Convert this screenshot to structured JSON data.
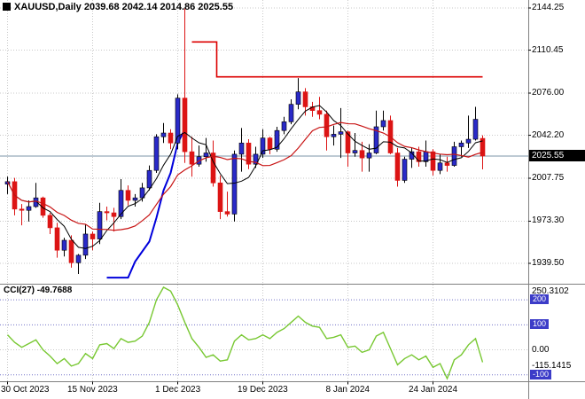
{
  "header": {
    "symbol_ohlc": "XAUUSD,Daily 2039.68 2042.14 2014.86 2025.55"
  },
  "indicator": {
    "label": "CCI(27) -49.7688"
  },
  "colors": {
    "background": "#ffffff",
    "bull_fill": "#2a2ac8",
    "bull_outline": "#000000",
    "bear": "#dc1414",
    "ma_fast": "#000000",
    "ma_slow": "#c81414",
    "trail_support": "#0000dc",
    "trail_resistance": "#dc0000",
    "cci_line": "#78c832",
    "grid": "#c8c8c8",
    "level_line": "#7070c8",
    "badge": "#3c3cc8",
    "current_price_line": "#7e96aa",
    "badge_current_bg": "#000000",
    "badge_current_fg": "#ffffff",
    "frame": "#808080",
    "axis_text": "#000000"
  },
  "price_axis": {
    "labels": [
      2144.25,
      2110.45,
      2076.0,
      2042.2,
      2007.75,
      1973.3,
      1939.5
    ],
    "current": 2025.55
  },
  "time_axis": {
    "labels": [
      "30 Oct 2023",
      "15 Nov 2023",
      "1 Dec 2023",
      "19 Dec 2023",
      "8 Jan 2024",
      "24 Jan 2024"
    ],
    "tick_indices": [
      0,
      12,
      24,
      36,
      48,
      60
    ]
  },
  "cci_axis": {
    "max_label": "250.3102",
    "level_badges": [
      200,
      100
    ],
    "zero_label": "0.00",
    "min_label": "-115.1415",
    "bottom_badge": -100
  },
  "chart_data": {
    "type": "candlestick",
    "title": "XAUUSD,Daily",
    "symbol": "XAUUSD",
    "timeframe": "Daily",
    "last_bar": {
      "open": 2039.68,
      "high": 2042.14,
      "low": 2014.86,
      "close": 2025.55
    },
    "ohlc": [
      [
        2003,
        2009,
        1995,
        2005
      ],
      [
        2005,
        2008,
        1978,
        1983
      ],
      [
        1983,
        1987,
        1970,
        1982
      ],
      [
        1982,
        1990,
        1973,
        1985
      ],
      [
        1985,
        2004,
        1984,
        1992
      ],
      [
        1992,
        1993,
        1976,
        1978
      ],
      [
        1978,
        1980,
        1963,
        1968
      ],
      [
        1968,
        1972,
        1944,
        1950
      ],
      [
        1950,
        1960,
        1945,
        1958
      ],
      [
        1958,
        1962,
        1936,
        1940
      ],
      [
        1940,
        1947,
        1931,
        1946
      ],
      [
        1946,
        1971,
        1943,
        1963
      ],
      [
        1963,
        1965,
        1950,
        1959
      ],
      [
        1959,
        1988,
        1955,
        1981
      ],
      [
        1981,
        1985,
        1974,
        1980
      ],
      [
        1980,
        1984,
        1965,
        1977
      ],
      [
        1977,
        2007,
        1975,
        1998
      ],
      [
        1998,
        2002,
        1986,
        1990
      ],
      [
        1990,
        1995,
        1985,
        1992
      ],
      [
        1992,
        2004,
        1989,
        2000
      ],
      [
        2000,
        2018,
        1998,
        2014
      ],
      [
        2014,
        2043,
        2012,
        2041
      ],
      [
        2041,
        2052,
        2036,
        2044
      ],
      [
        2044,
        2047,
        2031,
        2036
      ],
      [
        2036,
        2075,
        2031,
        2072
      ],
      [
        2072,
        2144,
        2020,
        2029
      ],
      [
        2029,
        2041,
        2009,
        2019
      ],
      [
        2019,
        2034,
        2017,
        2025
      ],
      [
        2025,
        2040,
        2021,
        2028
      ],
      [
        2028,
        2038,
        2001,
        2004
      ],
      [
        2004,
        2010,
        1975,
        1981
      ],
      [
        1981,
        1997,
        1977,
        1979
      ],
      [
        1979,
        2030,
        1973,
        2027
      ],
      [
        2027,
        2048,
        2013,
        2036
      ],
      [
        2036,
        2039,
        2015,
        2019
      ],
      [
        2019,
        2033,
        2016,
        2027
      ],
      [
        2027,
        2047,
        2024,
        2040
      ],
      [
        2040,
        2041,
        2027,
        2031
      ],
      [
        2031,
        2049,
        2029,
        2046
      ],
      [
        2046,
        2057,
        2043,
        2053
      ],
      [
        2053,
        2071,
        2051,
        2067
      ],
      [
        2067,
        2088,
        2063,
        2077
      ],
      [
        2077,
        2080,
        2058,
        2065
      ],
      [
        2065,
        2069,
        2057,
        2062
      ],
      [
        2062,
        2073,
        2055,
        2059
      ],
      [
        2059,
        2062,
        2030,
        2041
      ],
      [
        2041,
        2050,
        2034,
        2043
      ],
      [
        2043,
        2064,
        2024,
        2045
      ],
      [
        2045,
        2046,
        2017,
        2028
      ],
      [
        2028,
        2044,
        2025,
        2030
      ],
      [
        2030,
        2037,
        2013,
        2024
      ],
      [
        2024,
        2035,
        2013,
        2028
      ],
      [
        2028,
        2062,
        2027,
        2049
      ],
      [
        2049,
        2062,
        2046,
        2054
      ],
      [
        2054,
        2058,
        2027,
        2028
      ],
      [
        2028,
        2032,
        2001,
        2006
      ],
      [
        2006,
        2025,
        2004,
        2023
      ],
      [
        2023,
        2032,
        2016,
        2029
      ],
      [
        2029,
        2033,
        2017,
        2021
      ],
      [
        2021,
        2038,
        2017,
        2029
      ],
      [
        2029,
        2031,
        2010,
        2014
      ],
      [
        2014,
        2027,
        2011,
        2020
      ],
      [
        2020,
        2025,
        2013,
        2018
      ],
      [
        2018,
        2037,
        2017,
        2033
      ],
      [
        2033,
        2038,
        2025,
        2036
      ],
      [
        2036,
        2058,
        2032,
        2039
      ],
      [
        2039,
        2065,
        2038,
        2055
      ],
      [
        2039.68,
        2042.14,
        2014.86,
        2025.55
      ]
    ],
    "overlays": [
      {
        "name": "ma-fast-line",
        "type": "sma",
        "period": 5,
        "color_key": "ma_fast",
        "width": 1
      },
      {
        "name": "ma-slow-line",
        "type": "sma",
        "period": 12,
        "color_key": "ma_slow",
        "width": 1.2
      }
    ],
    "trail_lines": [
      {
        "name": "trend-support-line",
        "color_key": "trail_support",
        "width": 2,
        "points": [
          [
            14,
            1928
          ],
          [
            17,
            1928
          ],
          [
            18,
            1941
          ],
          [
            19,
            1949
          ],
          [
            20,
            1957
          ],
          [
            21,
            1976
          ],
          [
            22,
            1998
          ],
          [
            23,
            2012
          ],
          [
            24,
            2036
          ],
          [
            25,
            2047
          ]
        ]
      },
      {
        "name": "trend-resistance-line",
        "color_key": "trail_resistance",
        "width": 1.6,
        "points": [
          [
            26,
            2117
          ],
          [
            29.5,
            2117
          ],
          [
            29.5,
            2089
          ],
          [
            67,
            2089
          ]
        ]
      }
    ],
    "indicator": {
      "name": "CCI",
      "period": 27,
      "current": -49.7688,
      "scale_max": 250.3102,
      "scale_min": -115.1415,
      "levels": [
        200,
        100,
        -100
      ],
      "values": [
        60,
        30,
        10,
        25,
        40,
        0,
        -25,
        -55,
        -35,
        -65,
        -55,
        -15,
        -35,
        20,
        25,
        5,
        45,
        30,
        35,
        55,
        110,
        200,
        250.3102,
        235,
        180,
        110,
        45,
        10,
        -30,
        -20,
        -45,
        -40,
        35,
        60,
        40,
        45,
        60,
        45,
        70,
        85,
        110,
        135,
        110,
        95,
        90,
        45,
        50,
        60,
        10,
        15,
        -10,
        0,
        55,
        70,
        5,
        -60,
        -35,
        -20,
        -40,
        -25,
        -70,
        -55,
        -115.1415,
        -40,
        -20,
        20,
        45,
        -49.7688
      ]
    }
  }
}
